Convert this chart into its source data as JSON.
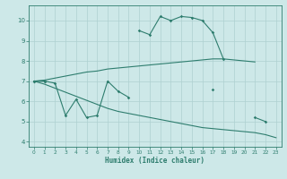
{
  "xlabel": "Humidex (Indice chaleur)",
  "color": "#2e7d6e",
  "bg_color": "#cde8e8",
  "grid_color": "#aed0d0",
  "xlim": [
    -0.5,
    23.5
  ],
  "ylim": [
    3.75,
    10.75
  ],
  "yticks": [
    4,
    5,
    6,
    7,
    8,
    9,
    10
  ],
  "xticks": [
    0,
    1,
    2,
    3,
    4,
    5,
    6,
    7,
    8,
    9,
    10,
    11,
    12,
    13,
    14,
    15,
    16,
    17,
    18,
    19,
    20,
    21,
    22,
    23
  ],
  "x": [
    0,
    1,
    2,
    3,
    4,
    5,
    6,
    7,
    8,
    9,
    10,
    11,
    12,
    13,
    14,
    15,
    16,
    17,
    18,
    19,
    20,
    21,
    22,
    23
  ],
  "max_y": [
    7.0,
    7.0,
    null,
    null,
    null,
    null,
    null,
    null,
    null,
    null,
    9.5,
    9.3,
    10.2,
    10.0,
    10.2,
    10.15,
    10.0,
    9.4,
    8.1,
    null,
    null,
    null,
    null,
    null
  ],
  "moy_max_y": [
    7.0,
    7.05,
    7.15,
    7.25,
    7.35,
    7.45,
    7.5,
    7.6,
    7.65,
    7.7,
    7.75,
    7.8,
    7.85,
    7.9,
    7.95,
    8.0,
    8.05,
    8.1,
    8.1,
    8.05,
    8.0,
    7.95,
    null,
    null
  ],
  "moy_y": [
    7.0,
    7.0,
    6.9,
    5.3,
    6.1,
    5.2,
    5.3,
    7.0,
    6.5,
    6.2,
    null,
    null,
    null,
    null,
    null,
    null,
    null,
    6.6,
    null,
    null,
    null,
    5.2,
    5.0,
    null
  ],
  "moy_min_y": [
    7.0,
    6.85,
    6.65,
    6.45,
    6.25,
    6.05,
    5.85,
    5.65,
    5.5,
    5.4,
    5.3,
    5.2,
    5.1,
    5.0,
    4.9,
    4.8,
    4.7,
    4.65,
    4.6,
    4.55,
    4.5,
    4.45,
    4.35,
    4.2
  ]
}
